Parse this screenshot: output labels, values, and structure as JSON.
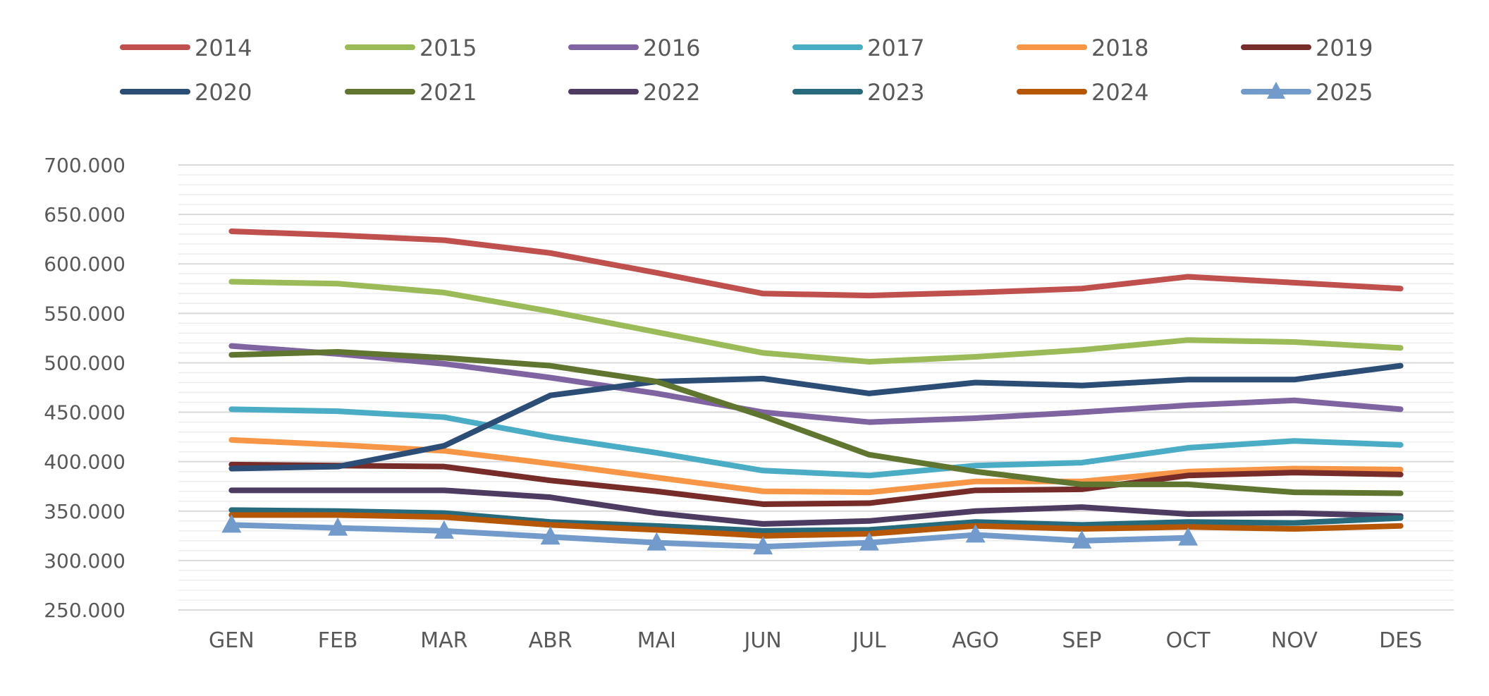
{
  "chart_data": {
    "type": "line",
    "categories": [
      "GEN",
      "FEB",
      "MAR",
      "ABR",
      "MAI",
      "JUN",
      "JUL",
      "AGO",
      "SEP",
      "OCT",
      "NOV",
      "DES"
    ],
    "ylim": [
      250000,
      700000
    ],
    "y_ticks": [
      {
        "value": 250000,
        "label": "250.000"
      },
      {
        "value": 300000,
        "label": "300.000"
      },
      {
        "value": 350000,
        "label": "350.000"
      },
      {
        "value": 400000,
        "label": "400.000"
      },
      {
        "value": 450000,
        "label": "450.000"
      },
      {
        "value": 500000,
        "label": "500.000"
      },
      {
        "value": 550000,
        "label": "550.000"
      },
      {
        "value": 600000,
        "label": "600.000"
      },
      {
        "value": 650000,
        "label": "650.000"
      },
      {
        "value": 700000,
        "label": "700.000"
      }
    ],
    "minor_grid_step": 10000,
    "grid": true,
    "legend": "top",
    "title": "",
    "xlabel": "",
    "ylabel": "",
    "series": [
      {
        "name": "2014",
        "color": "#C0504D",
        "values": [
          633000,
          629000,
          624000,
          611000,
          591000,
          570000,
          568000,
          571000,
          575000,
          587000,
          581000,
          575000
        ]
      },
      {
        "name": "2015",
        "color": "#9BBB59",
        "values": [
          582000,
          580000,
          571000,
          552000,
          531000,
          510000,
          501000,
          506000,
          513000,
          523000,
          521000,
          515000
        ]
      },
      {
        "name": "2016",
        "color": "#8064A2",
        "values": [
          517000,
          509000,
          499000,
          485000,
          469000,
          450000,
          440000,
          444000,
          450000,
          457000,
          462000,
          453000
        ]
      },
      {
        "name": "2017",
        "color": "#4BACC6",
        "values": [
          453000,
          451000,
          445000,
          425000,
          409000,
          391000,
          386000,
          396000,
          399000,
          414000,
          421000,
          417000
        ]
      },
      {
        "name": "2018",
        "color": "#F79646",
        "values": [
          422000,
          417000,
          411000,
          398000,
          384000,
          370000,
          369000,
          380000,
          380000,
          390000,
          393000,
          392000
        ]
      },
      {
        "name": "2019",
        "color": "#772C2A",
        "values": [
          397000,
          396000,
          395000,
          381000,
          370000,
          357000,
          358000,
          371000,
          372000,
          386000,
          389000,
          387000
        ]
      },
      {
        "name": "2020",
        "color": "#2C4D75",
        "values": [
          393000,
          395000,
          416000,
          467000,
          481000,
          484000,
          469000,
          480000,
          477000,
          483000,
          483000,
          497000
        ]
      },
      {
        "name": "2021",
        "color": "#5F7530",
        "values": [
          508000,
          511000,
          505000,
          497000,
          481000,
          446000,
          407000,
          390000,
          377000,
          377000,
          369000,
          368000
        ]
      },
      {
        "name": "2022",
        "color": "#4D3B62",
        "values": [
          371000,
          371000,
          371000,
          364000,
          348000,
          337000,
          340000,
          350000,
          354000,
          347000,
          348000,
          345000
        ]
      },
      {
        "name": "2023",
        "color": "#276A7C",
        "values": [
          351000,
          350000,
          348000,
          339000,
          335000,
          330000,
          331000,
          339000,
          336000,
          339000,
          338000,
          343000
        ]
      },
      {
        "name": "2024",
        "color": "#B65708",
        "values": [
          346000,
          346000,
          344000,
          336000,
          331000,
          325000,
          327000,
          335000,
          332000,
          334000,
          332000,
          335000
        ]
      },
      {
        "name": "2025",
        "color": "#729ACA",
        "marker": "triangle",
        "values": [
          336000,
          333000,
          330000,
          324000,
          318000,
          314000,
          318000,
          326000,
          320000,
          323000,
          null,
          null
        ]
      }
    ]
  }
}
